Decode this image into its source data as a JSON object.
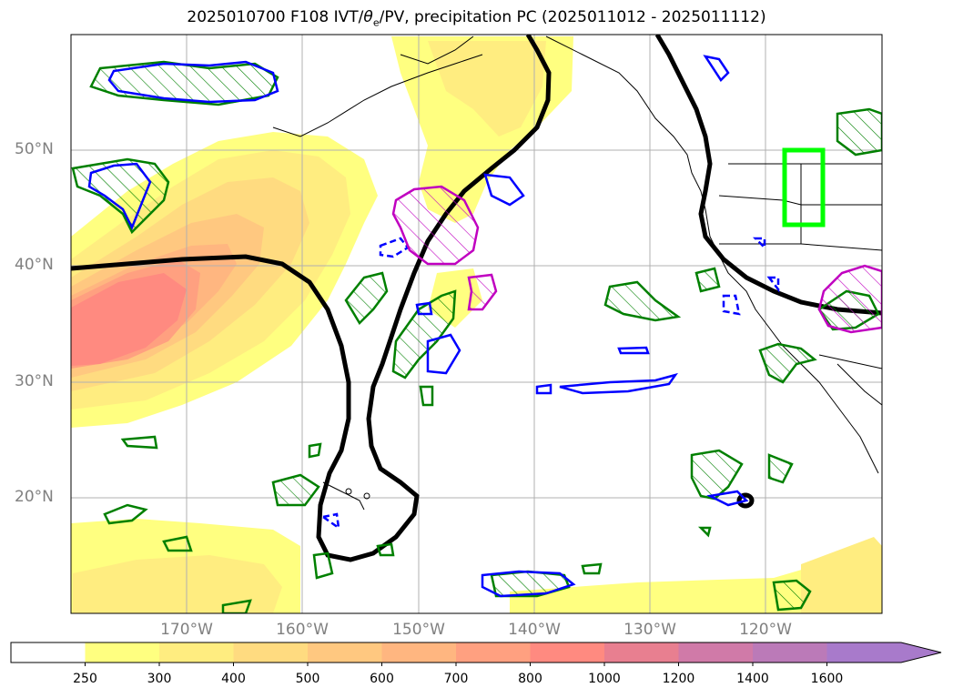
{
  "title": {
    "init": "2025010700",
    "forecast": "F108",
    "fields_pre": "IVT/",
    "theta_sym": "θ",
    "theta_sub": "e",
    "fields_post": "/PV, precipitation PC",
    "period": "(2025011012 - 2025011112)"
  },
  "lat_labels": [
    "50°N",
    "40°N",
    "30°N",
    "20°N"
  ],
  "lon_labels": [
    "170°W",
    "160°W",
    "150°W",
    "140°W",
    "130°W",
    "120°W"
  ],
  "colorbar": {
    "ticks": [
      "250",
      "300",
      "400",
      "500",
      "600",
      "700",
      "800",
      "1000",
      "1200",
      "1400",
      "1600"
    ],
    "colors": [
      "#ffffff",
      "#ffff80",
      "#ffed80",
      "#ffdb80",
      "#ffc880",
      "#ffb680",
      "#ffa080",
      "#ff8a80",
      "#e87f90",
      "#d07aa8",
      "#bb7ab8",
      "#a87acb"
    ],
    "extend": "max"
  },
  "chart_data": {
    "type": "map",
    "projection": "PlateCarree",
    "lon_range": [
      -180,
      -110
    ],
    "lat_range": [
      10,
      60
    ],
    "shaded_field": "IVT",
    "shaded_units_levels": [
      250,
      300,
      400,
      500,
      600,
      700,
      800,
      1000,
      1200,
      1400,
      1600
    ],
    "ivt_max_region": {
      "lon": [
        -180,
        -167
      ],
      "lat": [
        32,
        40
      ],
      "approx_value": 1000
    },
    "contours": [
      {
        "field": "theta_e",
        "color": "#000000"
      },
      {
        "field": "PV",
        "color": "#0000ff"
      },
      {
        "field": "precipitation PC",
        "color": "#008000",
        "hatched": true
      },
      {
        "field": "PV",
        "color": "#c000c0",
        "hatched": true
      }
    ],
    "target_box": {
      "color": "#00ff00",
      "lon": [
        -118,
        -115
      ],
      "lat": [
        42,
        50
      ]
    },
    "grid": true
  }
}
